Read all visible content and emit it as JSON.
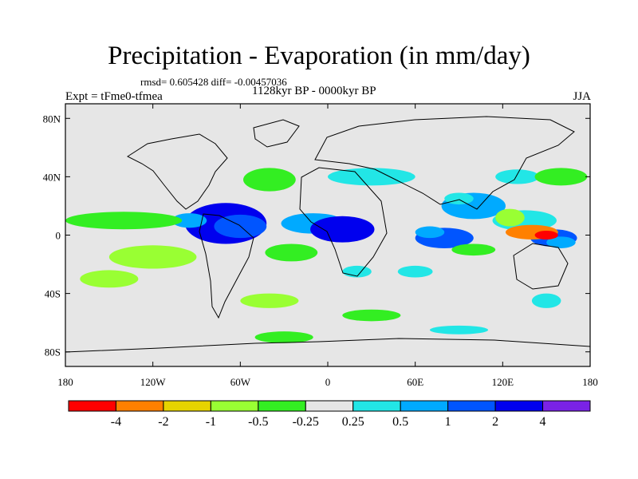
{
  "chart_data": {
    "type": "heatmap",
    "title": "Precipitation - Evaporation (in mm/day)",
    "stats": "rmsd= 0.605428 diff= -0.00457036",
    "period": "1128kyr BP - 0000kyr BP",
    "left_label": "Expt = tFme0-tfmea",
    "right_label": "JJA",
    "x_ticks": [
      "180",
      "120W",
      "60W",
      "0",
      "60E",
      "120E",
      "180"
    ],
    "x_values": [
      -180,
      -120,
      -60,
      0,
      60,
      120,
      180
    ],
    "y_ticks": [
      "80N",
      "40N",
      "0",
      "40S",
      "80S"
    ],
    "y_values": [
      80,
      40,
      0,
      -40,
      -80
    ],
    "xlim": [
      -180,
      180
    ],
    "ylim": [
      -90,
      90
    ],
    "colorbar": {
      "colors": [
        "#ff0000",
        "#ff8000",
        "#e6d300",
        "#99ff33",
        "#33ee22",
        "#e6e6e6",
        "#22e6e6",
        "#00aaff",
        "#0055ff",
        "#0000ee",
        "#7a22e6"
      ],
      "labels": [
        "-4",
        "-2",
        "-1",
        "-0.5",
        "-0.25",
        "0.25",
        "0.5",
        "1",
        "2",
        "4"
      ]
    },
    "regions": [
      {
        "lon": -70,
        "lat": 8,
        "rx": 28,
        "ry": 14,
        "level": 9
      },
      {
        "lon": -60,
        "lat": 6,
        "rx": 18,
        "ry": 8,
        "level": 8
      },
      {
        "lon": -95,
        "lat": 10,
        "rx": 12,
        "ry": 5,
        "level": 7
      },
      {
        "lon": -10,
        "lat": 8,
        "rx": 22,
        "ry": 7,
        "level": 7
      },
      {
        "lon": 10,
        "lat": 4,
        "rx": 22,
        "ry": 9,
        "level": 9
      },
      {
        "lon": 80,
        "lat": -2,
        "rx": 20,
        "ry": 7,
        "level": 8
      },
      {
        "lon": 70,
        "lat": 2,
        "rx": 10,
        "ry": 4,
        "level": 7
      },
      {
        "lon": 100,
        "lat": 20,
        "rx": 22,
        "ry": 9,
        "level": 7
      },
      {
        "lon": 90,
        "lat": 25,
        "rx": 10,
        "ry": 4,
        "level": 6
      },
      {
        "lon": 135,
        "lat": 10,
        "rx": 22,
        "ry": 7,
        "level": 6
      },
      {
        "lon": 155,
        "lat": -2,
        "rx": 16,
        "ry": 6,
        "level": 8
      },
      {
        "lon": 160,
        "lat": -5,
        "rx": 10,
        "ry": 4,
        "level": 7
      },
      {
        "lon": 125,
        "lat": 12,
        "rx": 10,
        "ry": 6,
        "level": 3
      },
      {
        "lon": 140,
        "lat": 2,
        "rx": 18,
        "ry": 5,
        "level": 1
      },
      {
        "lon": 150,
        "lat": 0,
        "rx": 8,
        "ry": 3,
        "level": 0
      },
      {
        "lon": -140,
        "lat": 10,
        "rx": 40,
        "ry": 6,
        "level": 4
      },
      {
        "lon": -120,
        "lat": -15,
        "rx": 30,
        "ry": 8,
        "level": 3
      },
      {
        "lon": -25,
        "lat": -12,
        "rx": 18,
        "ry": 6,
        "level": 4
      },
      {
        "lon": 30,
        "lat": 40,
        "rx": 30,
        "ry": 6,
        "level": 6
      },
      {
        "lon": -40,
        "lat": 38,
        "rx": 18,
        "ry": 8,
        "level": 4
      },
      {
        "lon": 130,
        "lat": 40,
        "rx": 15,
        "ry": 5,
        "level": 6
      },
      {
        "lon": 160,
        "lat": 40,
        "rx": 18,
        "ry": 6,
        "level": 4
      },
      {
        "lon": -150,
        "lat": -30,
        "rx": 20,
        "ry": 6,
        "level": 3
      },
      {
        "lon": -40,
        "lat": -45,
        "rx": 20,
        "ry": 5,
        "level": 3
      },
      {
        "lon": 30,
        "lat": -55,
        "rx": 20,
        "ry": 4,
        "level": 4
      },
      {
        "lon": 150,
        "lat": -45,
        "rx": 10,
        "ry": 5,
        "level": 6
      },
      {
        "lon": 100,
        "lat": -10,
        "rx": 15,
        "ry": 4,
        "level": 4
      },
      {
        "lon": 20,
        "lat": -25,
        "rx": 10,
        "ry": 4,
        "level": 6
      },
      {
        "lon": 60,
        "lat": -25,
        "rx": 12,
        "ry": 4,
        "level": 6
      },
      {
        "lon": -30,
        "lat": -70,
        "rx": 20,
        "ry": 4,
        "level": 4
      },
      {
        "lon": 90,
        "lat": -65,
        "rx": 20,
        "ry": 3,
        "level": 6
      }
    ]
  }
}
